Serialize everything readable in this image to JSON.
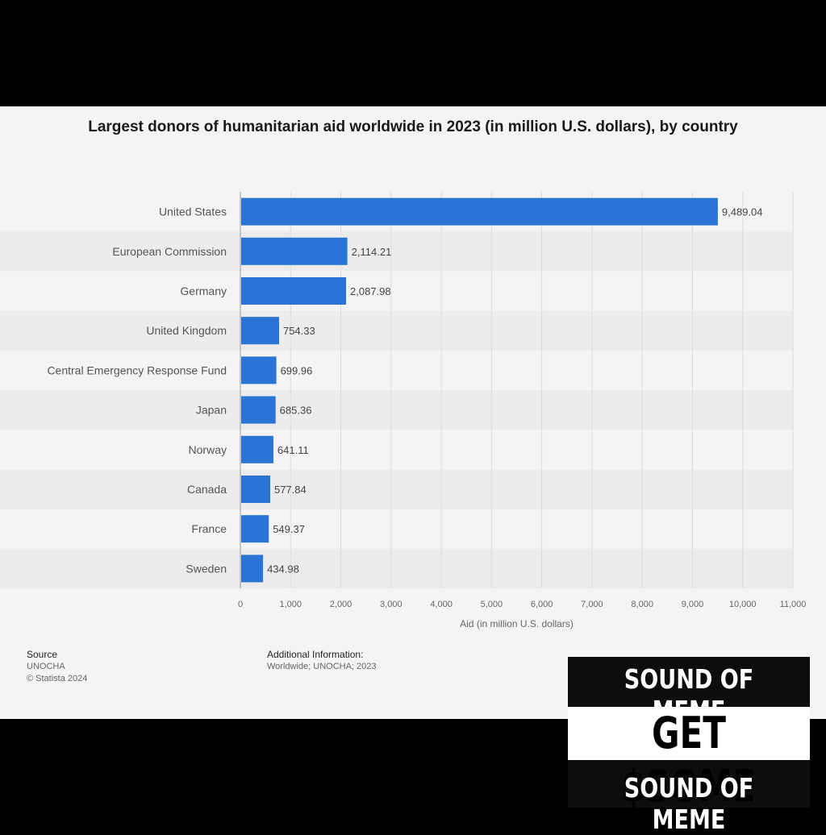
{
  "chart_data": {
    "type": "bar",
    "orientation": "horizontal",
    "title": "Largest donors of humanitarian aid worldwide in 2023 (in million U.S. dollars), by country",
    "categories": [
      "United States",
      "European Commission",
      "Germany",
      "United Kingdom",
      "Central Emergency Response Fund",
      "Japan",
      "Norway",
      "Canada",
      "France",
      "Sweden"
    ],
    "values": [
      9489.04,
      2114.21,
      2087.98,
      754.33,
      699.96,
      685.36,
      641.11,
      577.84,
      549.37,
      434.98
    ],
    "value_labels": [
      "9,489.04",
      "2,114.21",
      "2,087.98",
      "754.33",
      "699.96",
      "685.36",
      "641.11",
      "577.84",
      "549.37",
      "434.98"
    ],
    "xlabel": "Aid (in million U.S. dollars)",
    "ylabel": "",
    "xlim": [
      0,
      11000
    ],
    "xticks": [
      0,
      1000,
      2000,
      3000,
      4000,
      5000,
      6000,
      7000,
      8000,
      9000,
      10000,
      11000
    ],
    "xtick_labels": [
      "0",
      "1,000",
      "2,000",
      "3,000",
      "4,000",
      "5,000",
      "6,000",
      "7,000",
      "8,000",
      "9,000",
      "10,000",
      "11,000"
    ],
    "grid": true,
    "bar_color": "#2a74d8"
  },
  "source": {
    "heading": "Source",
    "lines": [
      "UNOCHA",
      "© Statista 2024"
    ]
  },
  "additional_info": {
    "heading": "Additional Information:",
    "text": "Worldwide; UNOCHA; 2023"
  },
  "overlay": {
    "line1": "SOUND OF MEME",
    "line2": "GET $SOME",
    "line3": "SOUND OF MEME"
  }
}
